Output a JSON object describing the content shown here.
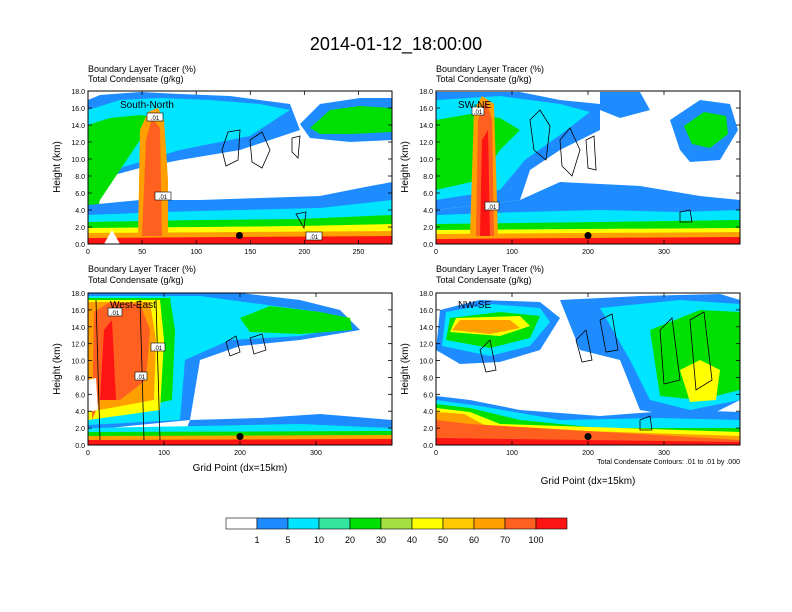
{
  "title": "2014-01-12_18:00:00",
  "palette": [
    "#ffffff",
    "#1e8cff",
    "#00e5ff",
    "#34e5a0",
    "#00e000",
    "#a6e040",
    "#ffff00",
    "#ffc800",
    "#ffa000",
    "#ff6020",
    "#ff1414"
  ],
  "chart_data": [
    {
      "type": "heatmap",
      "panel": "top-left",
      "label": "South-North",
      "title_lines": [
        "Boundary Layer Tracer   (%)",
        "Total Condensate   (g/kg)"
      ],
      "ylabel": "Height (km)",
      "xlabel": "",
      "xlim": [
        0,
        281
      ],
      "ylim": [
        0,
        18
      ],
      "xticks": [
        0,
        50,
        100,
        150,
        200,
        250
      ],
      "yticks": [
        0.0,
        2.0,
        4.0,
        6.0,
        8.0,
        10.0,
        12.0,
        14.0,
        16.0,
        18.0
      ],
      "contour_labels": [
        ".01",
        ".01",
        ".01"
      ],
      "marker_x": 140,
      "marker_y": 1.0
    },
    {
      "type": "heatmap",
      "panel": "top-right",
      "label": "SW-NE",
      "title_lines": [
        "Boundary Layer Tracer   (%)",
        "Total Condensate   (g/kg)"
      ],
      "ylabel": "Height (km)",
      "xlabel": "",
      "xlim": [
        0,
        400
      ],
      "ylim": [
        0,
        18
      ],
      "xticks": [
        0,
        100,
        200,
        300
      ],
      "yticks": [
        0.0,
        2.0,
        4.0,
        6.0,
        8.0,
        10.0,
        12.0,
        14.0,
        16.0,
        18.0
      ],
      "contour_labels": [
        ".01",
        ".01"
      ],
      "marker_x": 200,
      "marker_y": 1.0
    },
    {
      "type": "heatmap",
      "panel": "bottom-left",
      "label": "West-East",
      "title_lines": [
        "Boundary Layer Tracer   (%)",
        "Total Condensate   (g/kg)"
      ],
      "ylabel": "Height (km)",
      "xlabel": "Grid Point (dx=15km)",
      "xlim": [
        0,
        400
      ],
      "ylim": [
        0,
        18
      ],
      "xticks": [
        0,
        100,
        200,
        300
      ],
      "yticks": [
        0.0,
        2.0,
        4.0,
        6.0,
        8.0,
        10.0,
        12.0,
        14.0,
        16.0,
        18.0
      ],
      "contour_labels": [
        ".01",
        ".01",
        ".01"
      ],
      "marker_x": 200,
      "marker_y": 1.0
    },
    {
      "type": "heatmap",
      "panel": "bottom-right",
      "label": "NW-SE",
      "title_lines": [
        "Boundary Layer Tracer   (%)",
        "Total Condensate   (g/kg)"
      ],
      "ylabel": "Height (km)",
      "xlabel": "Grid Point (dx=15km)",
      "xlim": [
        0,
        400
      ],
      "ylim": [
        0,
        18
      ],
      "xticks": [
        0,
        100,
        200,
        300
      ],
      "yticks": [
        0.0,
        2.0,
        4.0,
        6.0,
        8.0,
        10.0,
        12.0,
        14.0,
        16.0,
        18.0
      ],
      "contour_labels": [],
      "marker_x": 200,
      "marker_y": 1.0,
      "footnote": "Total Condensate Contours: .01 to .01 by .000"
    }
  ],
  "colorbar": {
    "labels": [
      "1",
      "5",
      "10",
      "20",
      "30",
      "40",
      "50",
      "60",
      "70",
      "100"
    ]
  }
}
